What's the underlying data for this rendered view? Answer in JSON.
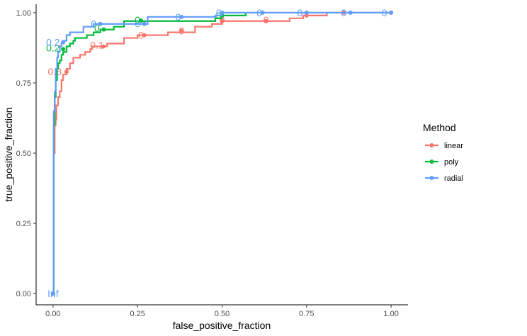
{
  "chart_data": {
    "type": "line",
    "title": "",
    "xlabel": "false_positive_fraction",
    "ylabel": "true_positive_fraction",
    "xlim": [
      -0.05,
      1.05
    ],
    "ylim": [
      -0.04,
      1.03
    ],
    "xticks": [
      "0.00",
      "0.25",
      "0.50",
      "0.75",
      "1.00"
    ],
    "yticks": [
      "0.00",
      "0.25",
      "0.50",
      "0.75",
      "1.00"
    ],
    "grid": false,
    "legend": {
      "title": "Method",
      "position": "right"
    },
    "series": [
      {
        "name": "linear",
        "color": "#F8766D",
        "points": [
          [
            0,
            0
          ],
          [
            0.002,
            0.5
          ],
          [
            0.005,
            0.6
          ],
          [
            0.008,
            0.62
          ],
          [
            0.01,
            0.67
          ],
          [
            0.015,
            0.7
          ],
          [
            0.02,
            0.72
          ],
          [
            0.025,
            0.76
          ],
          [
            0.03,
            0.78
          ],
          [
            0.04,
            0.8
          ],
          [
            0.05,
            0.82
          ],
          [
            0.06,
            0.84
          ],
          [
            0.075,
            0.84
          ],
          [
            0.08,
            0.85
          ],
          [
            0.095,
            0.86
          ],
          [
            0.11,
            0.87
          ],
          [
            0.115,
            0.88
          ],
          [
            0.14,
            0.88
          ],
          [
            0.15,
            0.88
          ],
          [
            0.16,
            0.89
          ],
          [
            0.2,
            0.89
          ],
          [
            0.21,
            0.91
          ],
          [
            0.25,
            0.92
          ],
          [
            0.27,
            0.92
          ],
          [
            0.34,
            0.93
          ],
          [
            0.38,
            0.93
          ],
          [
            0.42,
            0.95
          ],
          [
            0.47,
            0.96
          ],
          [
            0.5,
            0.97
          ],
          [
            0.54,
            0.97
          ],
          [
            0.57,
            0.97
          ],
          [
            0.62,
            0.97
          ],
          [
            0.7,
            0.98
          ],
          [
            0.74,
            0.99
          ],
          [
            0.81,
            0.99
          ],
          [
            0.81,
            1.0
          ],
          [
            1.0,
            1.0
          ]
        ],
        "markers": [
          [
            0,
            0
          ],
          [
            0.04,
            0.79
          ],
          [
            0.15,
            0.88
          ],
          [
            0.27,
            0.92
          ],
          [
            0.38,
            0.935
          ],
          [
            0.5,
            0.97
          ],
          [
            0.63,
            0.97
          ],
          [
            0.75,
            0.99
          ],
          [
            0.86,
            1.0
          ],
          [
            1.0,
            1.0
          ]
        ],
        "cut_labels": [
          {
            "x": 0.005,
            "y": 0.79,
            "text": "0.8"
          },
          {
            "x": 0.13,
            "y": 0.885,
            "text": "0.1"
          },
          {
            "x": 0.26,
            "y": 0.92,
            "text": "0"
          },
          {
            "x": 0.38,
            "y": 0.935,
            "text": "0"
          },
          {
            "x": 0.5,
            "y": 0.975,
            "text": "0"
          },
          {
            "x": 0.63,
            "y": 0.975,
            "text": "0"
          }
        ]
      },
      {
        "name": "poly",
        "color": "#00BA38",
        "points": [
          [
            0,
            0
          ],
          [
            0.002,
            0.6
          ],
          [
            0.005,
            0.7
          ],
          [
            0.008,
            0.76
          ],
          [
            0.012,
            0.8
          ],
          [
            0.015,
            0.82
          ],
          [
            0.02,
            0.83
          ],
          [
            0.025,
            0.85
          ],
          [
            0.03,
            0.86
          ],
          [
            0.04,
            0.88
          ],
          [
            0.05,
            0.89
          ],
          [
            0.06,
            0.9
          ],
          [
            0.065,
            0.91
          ],
          [
            0.1,
            0.92
          ],
          [
            0.12,
            0.93
          ],
          [
            0.14,
            0.94
          ],
          [
            0.18,
            0.95
          ],
          [
            0.21,
            0.97
          ],
          [
            0.25,
            0.97
          ],
          [
            0.26,
            0.97
          ],
          [
            0.3,
            0.97
          ],
          [
            0.4,
            0.97
          ],
          [
            0.48,
            0.98
          ],
          [
            0.5,
            0.99
          ],
          [
            0.57,
            0.99
          ],
          [
            0.57,
            1.0
          ]
        ],
        "markers": [
          [
            0,
            0
          ],
          [
            0.03,
            0.87
          ],
          [
            0.15,
            0.94
          ],
          [
            0.26,
            0.972
          ],
          [
            0.5,
            0.99
          ]
        ],
        "cut_labels": [
          {
            "x": 0.0,
            "y": 0.875,
            "text": "0.2"
          },
          {
            "x": 0.13,
            "y": 0.945,
            "text": "0"
          },
          {
            "x": 0.25,
            "y": 0.975,
            "text": "0"
          },
          {
            "x": 0.49,
            "y": 0.99,
            "text": "0"
          }
        ]
      },
      {
        "name": "radial",
        "color": "#619CFF",
        "points": [
          [
            0,
            0
          ],
          [
            0.002,
            0.65
          ],
          [
            0.005,
            0.72
          ],
          [
            0.008,
            0.8
          ],
          [
            0.012,
            0.84
          ],
          [
            0.015,
            0.86
          ],
          [
            0.02,
            0.88
          ],
          [
            0.025,
            0.89
          ],
          [
            0.03,
            0.9
          ],
          [
            0.04,
            0.92
          ],
          [
            0.05,
            0.93
          ],
          [
            0.085,
            0.93
          ],
          [
            0.09,
            0.95
          ],
          [
            0.11,
            0.95
          ],
          [
            0.12,
            0.96
          ],
          [
            0.14,
            0.96
          ],
          [
            0.2,
            0.96
          ],
          [
            0.27,
            0.96
          ],
          [
            0.28,
            0.985
          ],
          [
            0.38,
            0.985
          ],
          [
            0.48,
            0.99
          ],
          [
            0.5,
            1.0
          ],
          [
            1.0,
            1.0
          ]
        ],
        "markers": [
          [
            0,
            0
          ],
          [
            0.03,
            0.895
          ],
          [
            0.14,
            0.96
          ],
          [
            0.27,
            0.96
          ],
          [
            0.38,
            0.985
          ],
          [
            0.5,
            1.0
          ],
          [
            0.62,
            1.0
          ],
          [
            0.75,
            1.0
          ],
          [
            0.88,
            1.0
          ],
          [
            1.0,
            1.0
          ]
        ],
        "cut_labels": [
          {
            "x": 0.0,
            "y": 0.0,
            "text": "Inf"
          },
          {
            "x": 0.0,
            "y": 0.895,
            "text": "0.2"
          },
          {
            "x": 0.12,
            "y": 0.96,
            "text": "0"
          },
          {
            "x": 0.25,
            "y": 0.96,
            "text": "0"
          },
          {
            "x": 0.37,
            "y": 0.985,
            "text": "0"
          },
          {
            "x": 0.49,
            "y": 1.0,
            "text": "0"
          },
          {
            "x": 0.61,
            "y": 1.0,
            "text": "0"
          },
          {
            "x": 0.73,
            "y": 1.0,
            "text": "0"
          },
          {
            "x": 0.86,
            "y": 1.0,
            "text": "0"
          },
          {
            "x": 0.98,
            "y": 1.0,
            "text": "0"
          }
        ]
      }
    ]
  }
}
